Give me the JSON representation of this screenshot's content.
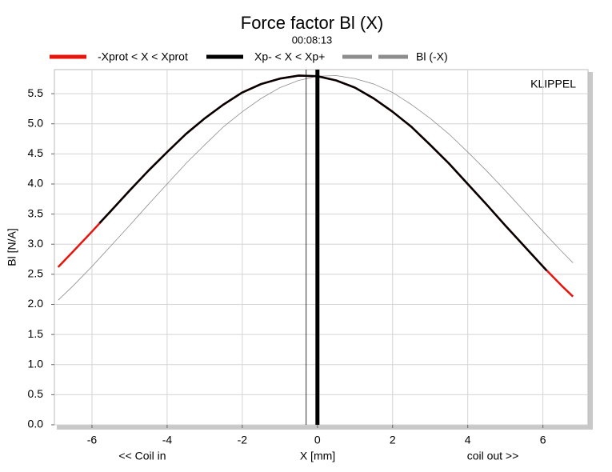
{
  "chart_data": {
    "type": "line",
    "title": "Force factor Bl (X)",
    "subtitle": "00:08:13",
    "xlabel": "X [mm]",
    "ylabel": "Bl [N/A]",
    "x_left_note": "<< Coil in",
    "x_right_note": "coil out >>",
    "watermark": "KLIPPEL",
    "xlim": [
      -7,
      7.2
    ],
    "ylim": [
      0,
      5.9
    ],
    "xticks": [
      -6,
      -4,
      -2,
      0,
      2,
      4,
      6
    ],
    "yticks": [
      {
        "value": 0,
        "label": "0.0"
      },
      0.5,
      {
        "value": 1,
        "label": "1.0"
      },
      1.5,
      {
        "value": 2,
        "label": "2.0"
      },
      2.5,
      {
        "value": 3,
        "label": "3.0"
      },
      3.5,
      {
        "value": 4,
        "label": "4.0"
      },
      4.5,
      {
        "value": 5,
        "label": "5.0"
      },
      5.5
    ],
    "grid": true,
    "series": [
      {
        "name": "-Xprot < X < Xprot",
        "color": "#e8140c",
        "width": 2.5,
        "x": [
          -6.9,
          -6.5,
          -6,
          -5.5,
          -5,
          -4.5,
          -4,
          -3.5,
          -3,
          -2.5,
          -2,
          -1.5,
          -1,
          -0.5,
          0,
          0.5,
          1,
          1.5,
          2,
          2.5,
          3,
          3.5,
          4,
          4.5,
          5,
          5.5,
          6,
          6.5,
          6.8
        ],
        "values": [
          2.62,
          2.88,
          3.21,
          3.55,
          3.89,
          4.22,
          4.53,
          4.83,
          5.09,
          5.32,
          5.52,
          5.66,
          5.75,
          5.8,
          5.79,
          5.72,
          5.6,
          5.42,
          5.2,
          4.95,
          4.65,
          4.34,
          4.0,
          3.66,
          3.31,
          2.97,
          2.63,
          2.31,
          2.13
        ]
      },
      {
        "name": "Xp- < X < Xp+",
        "color": "#000000",
        "width": 2.5,
        "x": [
          -5.8,
          -5.5,
          -5,
          -4.5,
          -4,
          -3.5,
          -3,
          -2.5,
          -2,
          -1.5,
          -1,
          -0.5,
          0,
          0.5,
          1,
          1.5,
          2,
          2.5,
          3,
          3.5,
          4,
          4.5,
          5,
          5.5,
          6,
          6.1
        ],
        "values": [
          3.35,
          3.55,
          3.89,
          4.22,
          4.53,
          4.83,
          5.09,
          5.32,
          5.52,
          5.66,
          5.75,
          5.8,
          5.79,
          5.72,
          5.6,
          5.42,
          5.2,
          4.95,
          4.65,
          4.34,
          4.0,
          3.66,
          3.31,
          2.97,
          2.63,
          2.56
        ]
      },
      {
        "name": "Bl (-X)",
        "color": "#8c8c8c",
        "width": 0.8,
        "x": [
          -6.9,
          -6.5,
          -6,
          -5.5,
          -5,
          -4.5,
          -4,
          -3.5,
          -3,
          -2.5,
          -2,
          -1.5,
          -1,
          -0.5,
          0,
          0.5,
          1,
          1.5,
          2,
          2.5,
          3,
          3.5,
          4,
          4.5,
          5,
          5.5,
          6,
          6.5,
          6.8
        ],
        "values": [
          2.07,
          2.31,
          2.63,
          2.97,
          3.31,
          3.66,
          4.0,
          4.34,
          4.65,
          4.95,
          5.2,
          5.42,
          5.6,
          5.72,
          5.79,
          5.8,
          5.75,
          5.66,
          5.52,
          5.32,
          5.09,
          4.83,
          4.53,
          4.22,
          3.89,
          3.55,
          3.21,
          2.88,
          2.69
        ]
      }
    ],
    "vlines": [
      {
        "x": -0.3,
        "color": "#000000",
        "width": 0.8
      },
      {
        "x": 0,
        "color": "#000000",
        "width": 5
      }
    ]
  }
}
